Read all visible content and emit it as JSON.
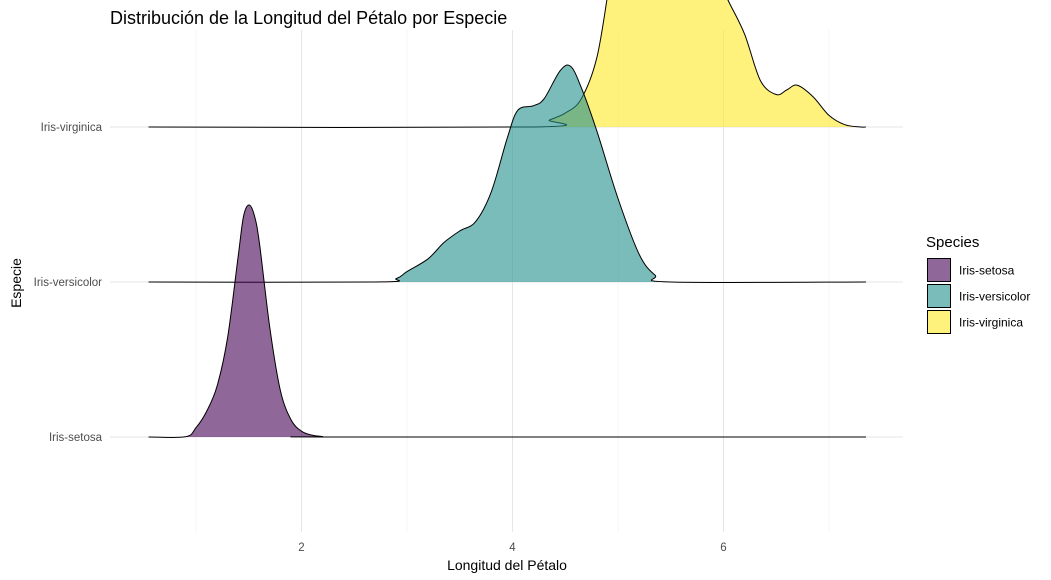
{
  "chart_data": {
    "type": "ridgeline",
    "title": "Distribución de la Longitud del Pétalo por Especie",
    "xlabel": "Longitud del Pétalo",
    "ylabel": "Especie",
    "xlim": [
      0.5,
      7.5
    ],
    "x_ticks": [
      2,
      4,
      6
    ],
    "grid": true,
    "legend": {
      "title": "Species",
      "position": "right"
    },
    "categories": [
      "Iris-setosa",
      "Iris-versicolor",
      "Iris-virginica"
    ],
    "series": [
      {
        "name": "Iris-setosa",
        "color": "#440154",
        "density": [
          [
            0.55,
            0.0
          ],
          [
            0.9,
            0.001
          ],
          [
            1.0,
            0.04
          ],
          [
            1.1,
            0.11
          ],
          [
            1.2,
            0.22
          ],
          [
            1.3,
            0.43
          ],
          [
            1.4,
            0.78
          ],
          [
            1.45,
            0.95
          ],
          [
            1.5,
            1.0
          ],
          [
            1.55,
            0.96
          ],
          [
            1.6,
            0.84
          ],
          [
            1.7,
            0.47
          ],
          [
            1.8,
            0.2
          ],
          [
            1.9,
            0.075
          ],
          [
            2.0,
            0.025
          ],
          [
            2.1,
            0.008
          ],
          [
            2.2,
            0.002
          ],
          [
            2.3,
            0.0
          ],
          [
            7.35,
            0.0
          ]
        ]
      },
      {
        "name": "Iris-versicolor",
        "color": "#21908C",
        "density": [
          [
            0.55,
            0.0
          ],
          [
            2.7,
            0.0
          ],
          [
            2.9,
            0.015
          ],
          [
            3.0,
            0.045
          ],
          [
            3.2,
            0.1
          ],
          [
            3.35,
            0.17
          ],
          [
            3.5,
            0.22
          ],
          [
            3.65,
            0.26
          ],
          [
            3.8,
            0.39
          ],
          [
            3.95,
            0.62
          ],
          [
            4.05,
            0.74
          ],
          [
            4.2,
            0.76
          ],
          [
            4.3,
            0.79
          ],
          [
            4.45,
            0.91
          ],
          [
            4.55,
            0.93
          ],
          [
            4.65,
            0.84
          ],
          [
            4.8,
            0.65
          ],
          [
            5.0,
            0.36
          ],
          [
            5.2,
            0.12
          ],
          [
            5.35,
            0.03
          ],
          [
            5.5,
            0.0
          ],
          [
            7.35,
            0.0
          ]
        ]
      },
      {
        "name": "Iris-virginica",
        "color": "#FDE725",
        "density": [
          [
            0.55,
            0.0
          ],
          [
            4.2,
            0.0
          ],
          [
            4.35,
            0.03
          ],
          [
            4.5,
            0.06
          ],
          [
            4.65,
            0.12
          ],
          [
            4.8,
            0.3
          ],
          [
            4.92,
            0.62
          ],
          [
            5.0,
            0.82
          ],
          [
            5.08,
            0.9
          ],
          [
            5.15,
            0.88
          ],
          [
            5.25,
            0.76
          ],
          [
            5.35,
            0.73
          ],
          [
            5.45,
            0.8
          ],
          [
            5.55,
            0.87
          ],
          [
            5.65,
            0.89
          ],
          [
            5.75,
            0.81
          ],
          [
            5.9,
            0.68
          ],
          [
            6.05,
            0.54
          ],
          [
            6.2,
            0.4
          ],
          [
            6.35,
            0.2
          ],
          [
            6.5,
            0.14
          ],
          [
            6.6,
            0.16
          ],
          [
            6.7,
            0.18
          ],
          [
            6.85,
            0.13
          ],
          [
            7.0,
            0.05
          ],
          [
            7.15,
            0.01
          ],
          [
            7.3,
            0.0
          ],
          [
            7.35,
            0.0
          ]
        ]
      }
    ]
  }
}
